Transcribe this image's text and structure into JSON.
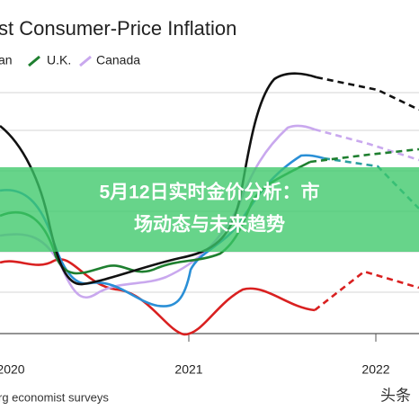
{
  "header": {
    "title": "st Consumer-Price Inflation"
  },
  "legend": {
    "items": [
      "an",
      "U.K.",
      "Canada"
    ]
  },
  "axis": {
    "x_labels": [
      "2020",
      "2021",
      "2022"
    ]
  },
  "source": "rg economist surveys",
  "banner": {
    "lines": [
      "5月12日实时金价分析：市",
      "场动态与未来趋势"
    ]
  },
  "watermark": "头条"
}
